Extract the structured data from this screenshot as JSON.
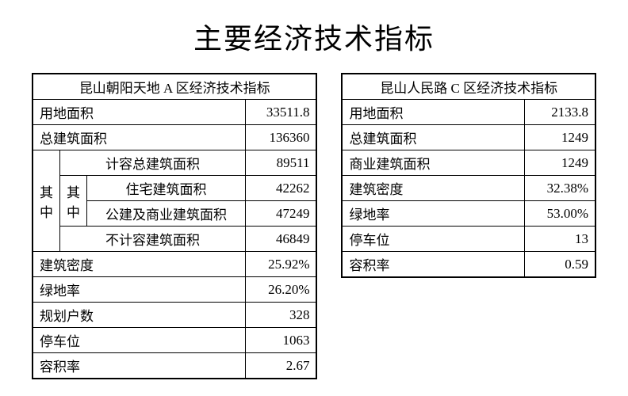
{
  "title": "主要经济技术指标",
  "tableA": {
    "header": "昆山朝阳天地 A 区经济技术指标",
    "rows": {
      "landArea": {
        "label": "用地面积",
        "value": "33511.8"
      },
      "totalBuildArea": {
        "label": "总建筑面积",
        "value": "136360"
      },
      "qizhong1": "其中",
      "countedTotal": {
        "label": "计容总建筑面积",
        "value": "89511"
      },
      "qizhong2": "其中",
      "residential": {
        "label": "住宅建筑面积",
        "value": "42262"
      },
      "publicCommercial": {
        "label": "公建及商业建筑面积",
        "value": "47249"
      },
      "uncounted": {
        "label": "不计容建筑面积",
        "value": "46849"
      },
      "density": {
        "label": "建筑密度",
        "value": "25.92%"
      },
      "greenRatio": {
        "label": "绿地率",
        "value": "26.20%"
      },
      "households": {
        "label": "规划户数",
        "value": "328"
      },
      "parking": {
        "label": "停车位",
        "value": "1063"
      },
      "plotRatio": {
        "label": "容积率",
        "value": "2.67"
      }
    }
  },
  "tableC": {
    "header": "昆山人民路 C 区经济技术指标",
    "rows": {
      "landArea": {
        "label": "用地面积",
        "value": "2133.8"
      },
      "totalBuildArea": {
        "label": "总建筑面积",
        "value": "1249"
      },
      "commercialArea": {
        "label": "商业建筑面积",
        "value": "1249"
      },
      "density": {
        "label": "建筑密度",
        "value": "32.38%"
      },
      "greenRatio": {
        "label": "绿地率",
        "value": "53.00%"
      },
      "parking": {
        "label": "停车位",
        "value": "13"
      },
      "plotRatio": {
        "label": "容积率",
        "value": "0.59"
      }
    }
  },
  "styling": {
    "background_color": "#ffffff",
    "border_color": "#000000",
    "title_fontsize": 36,
    "cell_fontsize": 17,
    "font_family": "SimSun"
  }
}
